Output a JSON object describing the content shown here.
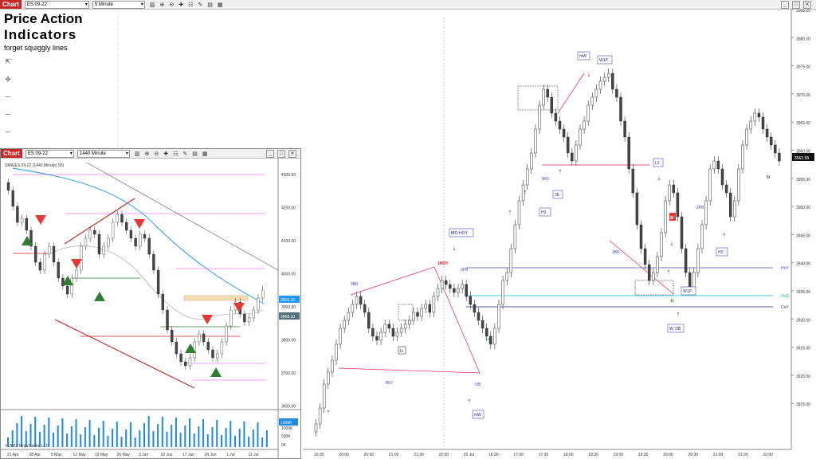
{
  "main_toolbar": {
    "chart_tab": "Chart",
    "instrument": "ES 09-22",
    "interval": "5 Minute"
  },
  "inset_toolbar": {
    "chart_tab": "Chart",
    "instrument": "ES 09-22",
    "interval": "1440 Minute"
  },
  "titles": {
    "line1": "Price Action",
    "line2": "Indicators",
    "line3": "forget squiggly lines"
  },
  "main_price_axis": [
    "3985.00",
    "3980.00",
    "3975.00",
    "3970.00",
    "3965.00",
    "3960.00",
    "3955.00",
    "3950.00",
    "3945.00",
    "3940.00",
    "3935.00",
    "3930.00",
    "3925.00",
    "3920.00",
    "3915.00"
  ],
  "main_last_price": "3962.58",
  "main_time_axis": [
    "19:30",
    "20:00",
    "20:30",
    "21:00",
    "21:30",
    "22:00",
    "20 Jul",
    "16:30",
    "17:00",
    "17:30",
    "18:00",
    "18:30",
    "19:00",
    "19:30",
    "20:00",
    "20:30",
    "21:00",
    "21:30",
    "22:00"
  ],
  "level_labels": {
    "hoy": "HoY",
    "ood": "OoD",
    "coy": "CoY"
  },
  "annotations": {
    "mW": "mW",
    "W1P_top": "W1P",
    "L2": "L2",
    "H2_a": "H2",
    "H2_b": "H2",
    "2E": "2E",
    "fBO_HOY": "fBO HOY",
    "1HOY": "1HOY",
    "2PB": "2PB",
    "2BR_a": "2BR",
    "2BR_b": "2BR",
    "mW_b": "mW",
    "OB": "OB",
    "1BO": "1BO",
    "fBO": "fBO",
    "W1P_b": "W1P",
    "W_DB": "W, DB",
    "1t": "1t",
    "5t": "5t",
    "1s": "1s",
    "2PB_b": "2PB",
    "M": "M"
  },
  "inset_price_axis": [
    "4300.00",
    "4200.00",
    "4100.00",
    "4000.00",
    "3900.00",
    "3800.00",
    "3700.00",
    "3600.00"
  ],
  "inset_price_tags": {
    "upper": "3916.10",
    "lower": "3868.10"
  },
  "inset_time_axis": [
    "21 Apr",
    "28 Apr",
    "5 May",
    "12 May",
    "19 May",
    "26 May",
    "3 Jun",
    "10 Jun",
    "17 Jun",
    "24 Jun",
    "1 Jul",
    "11 Jul"
  ],
  "inset_indicator_label": "SMA(ES 09-22 (1440 Minute),50)",
  "inset_volume_axis": {
    "tag": "1306K",
    "v1": "1000K",
    "v2": "500K",
    "v3": "0K"
  },
  "inset_copyright": "© 2022 NinjaTrader, LLC",
  "colors": {
    "accent_red": "#c62828",
    "hoy_line": "#3f51b5",
    "ood_line": "#00bcd4",
    "coy_line": "#1a237e",
    "sma_blue": "#2196f3",
    "vol_blue": "#1e88e5"
  }
}
